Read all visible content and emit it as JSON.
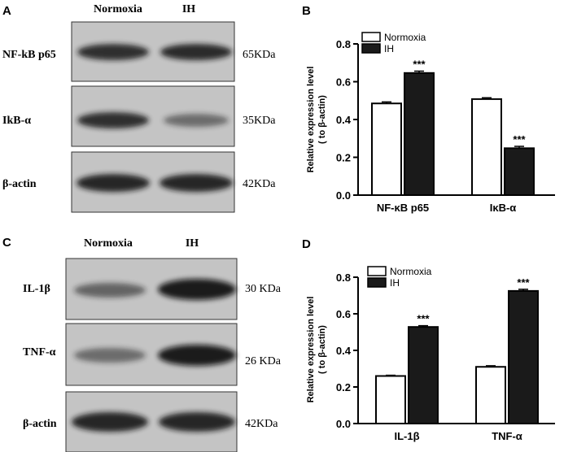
{
  "panels": {
    "A": {
      "letter": "A",
      "conditions": [
        "Normoxia",
        "IH"
      ],
      "blots": [
        {
          "label": "NF-kB p65",
          "size": "65KDa",
          "intensity": [
            0.85,
            0.88
          ]
        },
        {
          "label": "IkB-α",
          "size": "35KDa",
          "intensity": [
            0.85,
            0.45
          ]
        },
        {
          "label": "β-actin",
          "size": "42KDa",
          "intensity": [
            0.9,
            0.9
          ]
        }
      ]
    },
    "C": {
      "letter": "C",
      "conditions": [
        "Normoxia",
        "IH"
      ],
      "blots": [
        {
          "label": "IL-1β",
          "size": "30 KDa",
          "intensity": [
            0.55,
            0.92
          ]
        },
        {
          "label": "TNF-α",
          "size": "26 KDa",
          "intensity": [
            0.5,
            0.92
          ]
        },
        {
          "label": "β-actin",
          "size": "42KDa",
          "intensity": [
            0.9,
            0.9
          ]
        }
      ]
    }
  },
  "chart_data": [
    {
      "panel": "B",
      "type": "bar",
      "categories": [
        "NF-κB p65",
        "IκB-α"
      ],
      "series": [
        {
          "name": "Normoxia",
          "values": [
            0.485,
            0.508
          ],
          "errors": [
            0.008,
            0.007
          ],
          "color": "#ffffff"
        },
        {
          "name": "IH",
          "values": [
            0.646,
            0.248
          ],
          "errors": [
            0.01,
            0.01
          ],
          "color": "#1a1a1a"
        }
      ],
      "significance": [
        [
          "",
          "***"
        ],
        [
          "",
          "***"
        ]
      ],
      "ylabel": [
        "Relative expression level",
        "( to β-actin)"
      ],
      "ylim": [
        0,
        0.8
      ],
      "yticks": [
        "0.0",
        "0.2",
        "0.4",
        "0.6",
        "0.8"
      ],
      "legend_position": "top-left"
    },
    {
      "panel": "D",
      "type": "bar",
      "categories": [
        "IL-1β",
        "TNF-α"
      ],
      "series": [
        {
          "name": "Normoxia",
          "values": [
            0.26,
            0.31
          ],
          "errors": [
            0.004,
            0.006
          ],
          "color": "#ffffff"
        },
        {
          "name": "IH",
          "values": [
            0.528,
            0.725
          ],
          "errors": [
            0.007,
            0.009
          ],
          "color": "#1a1a1a"
        }
      ],
      "significance": [
        [
          "",
          "***"
        ],
        [
          "",
          "***"
        ]
      ],
      "ylabel": [
        "Relative expression level",
        "( to β-actin)"
      ],
      "ylim": [
        0,
        0.8
      ],
      "yticks": [
        "0.0",
        "0.2",
        "0.4",
        "0.6",
        "0.8"
      ],
      "legend_position": "top-left"
    }
  ]
}
